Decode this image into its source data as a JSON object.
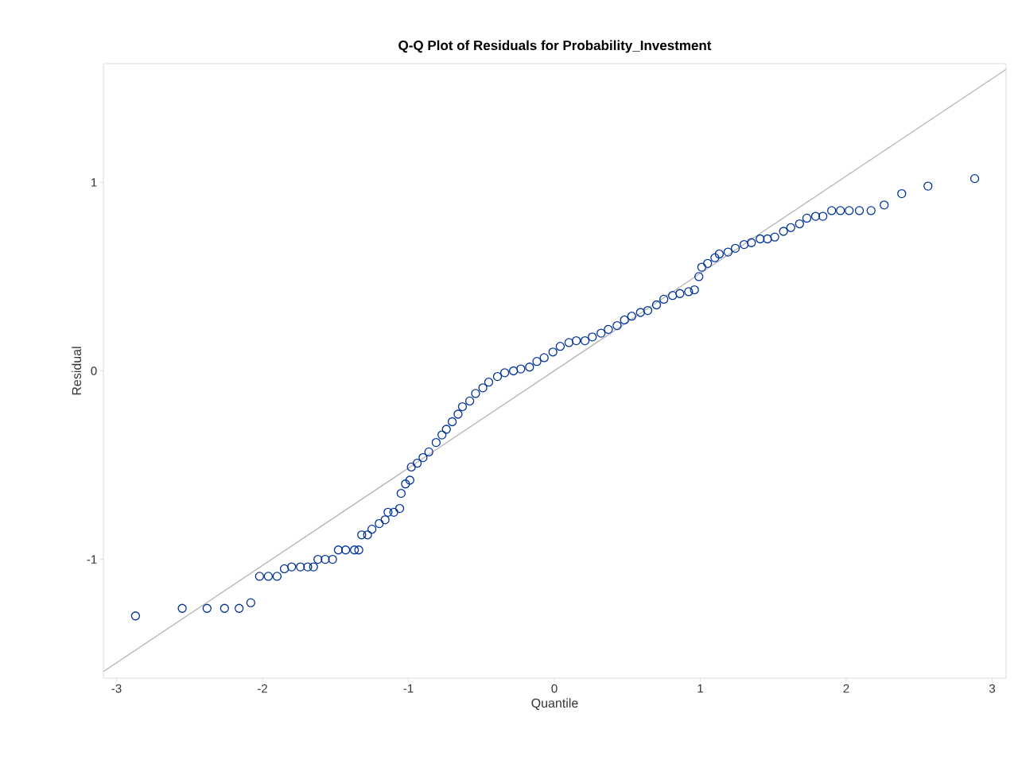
{
  "chart_data": {
    "type": "scatter",
    "title": "Q-Q Plot of Residuals for Probability_Investment",
    "xlabel": "Quantile",
    "ylabel": "Residual",
    "xlim": [
      -3.09,
      3.095
    ],
    "ylim": [
      -1.63,
      1.63
    ],
    "xticks": [
      -3,
      -2,
      -1,
      0,
      1,
      2,
      3
    ],
    "yticks": [
      -1,
      0,
      1
    ],
    "marker": "circle",
    "series": [
      {
        "color": "#003399",
        "x": [
          -2.87,
          -2.55,
          -2.38,
          -2.26,
          -2.16,
          -2.08,
          -2.02,
          -1.96,
          -1.9,
          -1.85,
          -1.8,
          -1.74,
          -1.69,
          -1.65,
          -1.62,
          -1.57,
          -1.52,
          -1.48,
          -1.43,
          -1.37,
          -1.34,
          -1.32,
          -1.28,
          -1.25,
          -1.2,
          -1.16,
          -1.14,
          -1.1,
          -1.06,
          -1.05,
          -1.02,
          -0.99,
          -0.98,
          -0.94,
          -0.9,
          -0.86,
          -0.81,
          -0.77,
          -0.74,
          -0.7,
          -0.66,
          -0.63,
          -0.58,
          -0.54,
          -0.49,
          -0.45,
          -0.39,
          -0.34,
          -0.28,
          -0.23,
          -0.17,
          -0.12,
          -0.07,
          -0.01,
          0.04,
          0.1,
          0.15,
          0.21,
          0.26,
          0.32,
          0.37,
          0.43,
          0.48,
          0.53,
          0.59,
          0.64,
          0.7,
          0.75,
          0.81,
          0.86,
          0.92,
          0.96,
          0.99,
          1.01,
          1.05,
          1.1,
          1.13,
          1.19,
          1.24,
          1.3,
          1.35,
          1.41,
          1.46,
          1.51,
          1.57,
          1.62,
          1.68,
          1.73,
          1.79,
          1.84,
          1.9,
          1.96,
          2.02,
          2.09,
          2.17,
          2.26,
          2.38,
          2.56,
          2.88
        ],
        "values": [
          -1.3,
          -1.26,
          -1.26,
          -1.26,
          -1.26,
          -1.23,
          -1.09,
          -1.09,
          -1.09,
          -1.05,
          -1.04,
          -1.04,
          -1.04,
          -1.04,
          -1.0,
          -1.0,
          -1.0,
          -0.95,
          -0.95,
          -0.95,
          -0.95,
          -0.87,
          -0.87,
          -0.84,
          -0.81,
          -0.79,
          -0.75,
          -0.75,
          -0.73,
          -0.65,
          -0.6,
          -0.58,
          -0.51,
          -0.49,
          -0.46,
          -0.43,
          -0.38,
          -0.34,
          -0.31,
          -0.27,
          -0.23,
          -0.19,
          -0.16,
          -0.12,
          -0.09,
          -0.06,
          -0.03,
          -0.01,
          0.0,
          0.01,
          0.02,
          0.05,
          0.07,
          0.1,
          0.13,
          0.15,
          0.16,
          0.16,
          0.18,
          0.2,
          0.22,
          0.24,
          0.27,
          0.29,
          0.31,
          0.32,
          0.35,
          0.38,
          0.4,
          0.41,
          0.42,
          0.43,
          0.5,
          0.55,
          0.57,
          0.6,
          0.62,
          0.63,
          0.65,
          0.67,
          0.68,
          0.7,
          0.7,
          0.71,
          0.74,
          0.76,
          0.78,
          0.81,
          0.82,
          0.82,
          0.85,
          0.85,
          0.85,
          0.85,
          0.85,
          0.88,
          0.94,
          0.98,
          1.02
        ]
      },
      {
        "type": "line",
        "marker": "none",
        "color": "#b4b4b4",
        "x": [
          -3.09,
          3.095
        ],
        "values": [
          -1.595,
          1.599
        ]
      }
    ]
  }
}
